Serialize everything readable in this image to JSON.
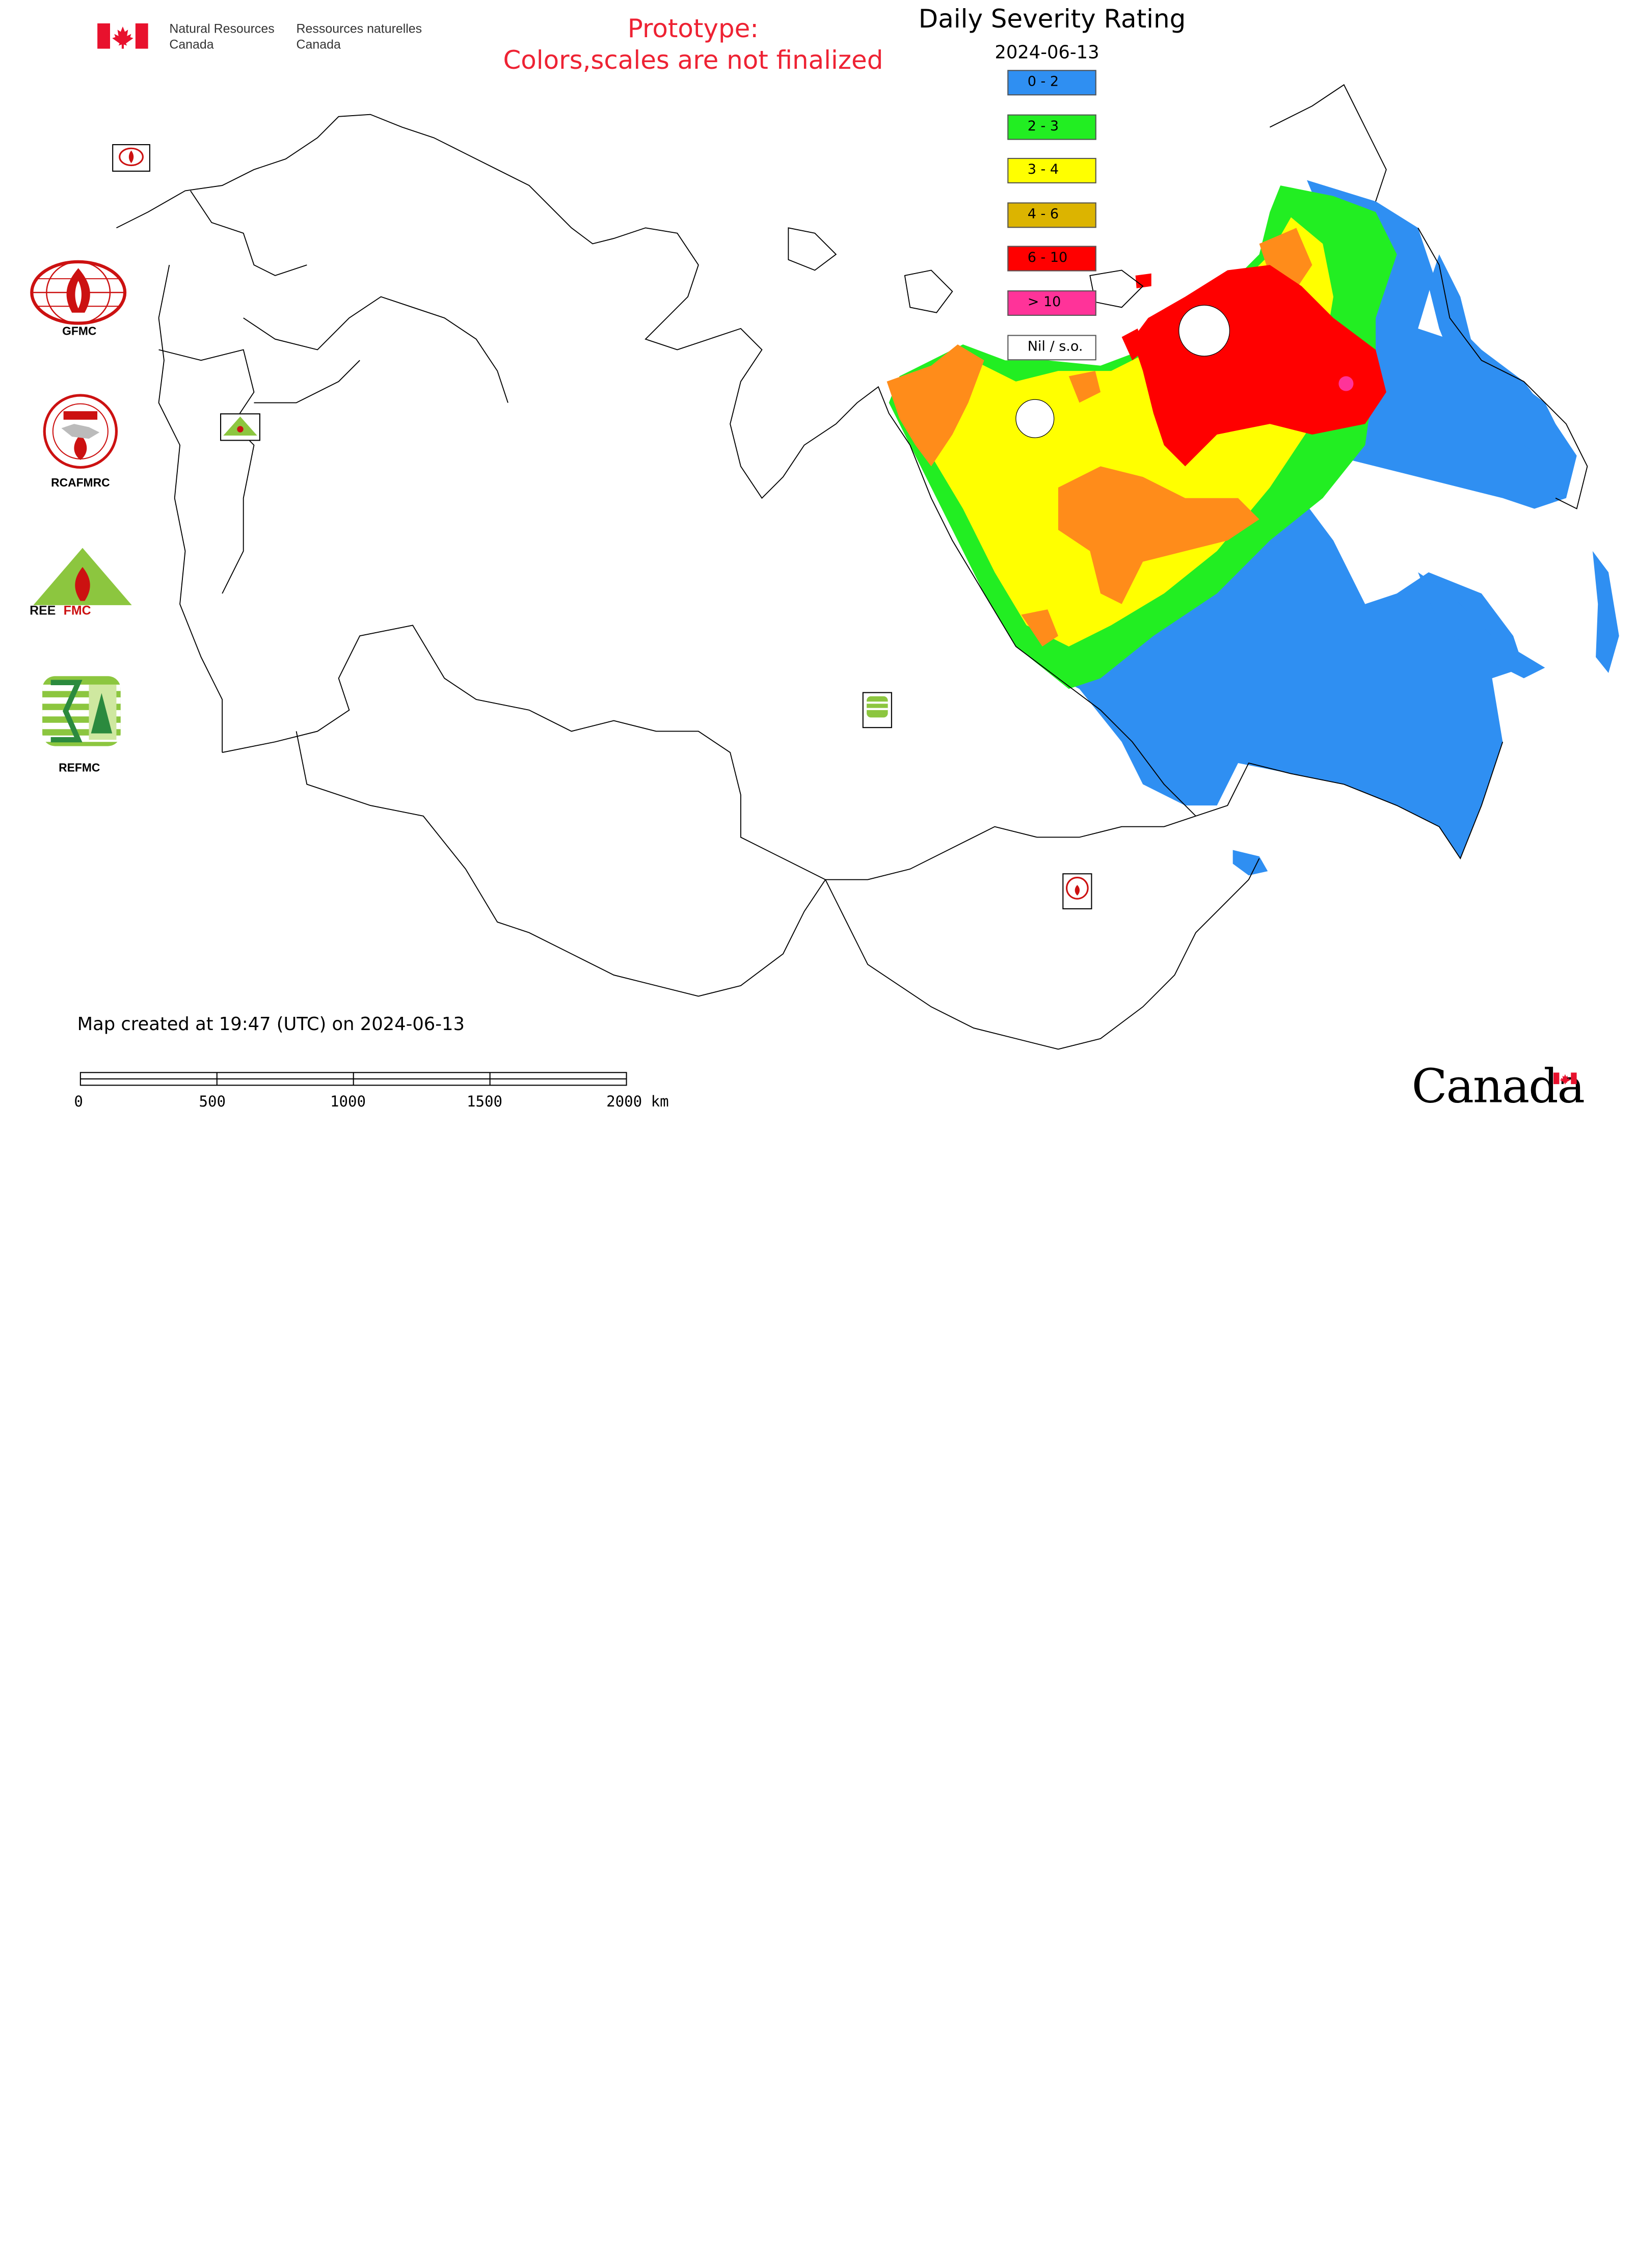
{
  "header": {
    "dept_en_line1": "Natural Resources",
    "dept_en_line2": "Canada",
    "dept_fr_line1": "Ressources naturelles",
    "dept_fr_line2": "Canada"
  },
  "notice": {
    "line1": "Prototype:",
    "line2": "Colors,scales are not finalized",
    "color": "#ee2233"
  },
  "map_title": "Daily Severity Rating",
  "map_date": "2024-06-13",
  "legend": [
    {
      "label": "0 - 2",
      "color": "#2f8ff2"
    },
    {
      "label": "2 - 3",
      "color": "#22ee22"
    },
    {
      "label": "3 - 4",
      "color": "#ffff00"
    },
    {
      "label": "4 - 6",
      "color": "#dcb400"
    },
    {
      "label": "6 - 10",
      "color": "#ff0000"
    },
    {
      "label": "> 10",
      "color": "#ff3399"
    },
    {
      "label": "Nil / s.o.",
      "color": "#ffffff"
    }
  ],
  "agencies": [
    {
      "label": "GFMC"
    },
    {
      "label": "RCAFMRC"
    },
    {
      "label": "REFMC"
    }
  ],
  "created_text": "Map created at 19:47 (UTC) on 2024-06-13",
  "scale_bar": {
    "ticks": [
      "0",
      "500",
      "1000",
      "1500",
      "2000 km"
    ]
  },
  "wordmark": "Canada",
  "icons": [
    "canada-flag-icon",
    "gfmc-logo-icon",
    "rcafmrc-logo-icon",
    "reefmc-logo-icon",
    "refmc-logo-icon"
  ]
}
